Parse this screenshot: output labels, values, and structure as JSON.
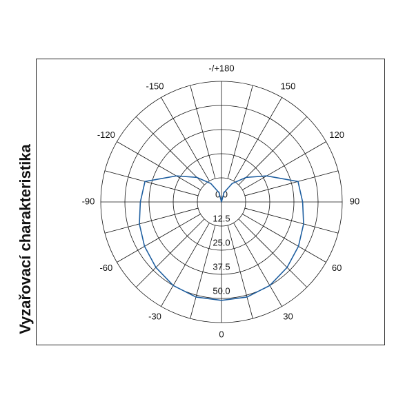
{
  "chart_data": {
    "type": "polar",
    "title": "Vyzařovací charakteristika",
    "x": [
      -180,
      -165,
      -150,
      -135,
      -120,
      -105,
      -90,
      -75,
      -60,
      -45,
      -30,
      -15,
      0,
      15,
      30,
      45,
      60,
      75,
      90,
      105,
      120,
      135,
      150,
      165,
      180
    ],
    "values": [
      0,
      5,
      11,
      18,
      27,
      41,
      42,
      44,
      46,
      48,
      50,
      51,
      51,
      51,
      50,
      48,
      46,
      44,
      42,
      41,
      27,
      18,
      11,
      5,
      0
    ],
    "color": "#1f5fa0",
    "xticks": [
      0,
      30,
      60,
      90,
      120,
      150,
      {
        "value": 180,
        "label": "-/+180"
      },
      -150,
      -120,
      -90,
      -60,
      -30
    ],
    "ylim": [
      0,
      62.5
    ],
    "yticks": [
      {
        "value": 0,
        "label": "0.0"
      },
      12.5,
      {
        "value": 25,
        "label": "25.0"
      },
      37.5,
      {
        "value": 50,
        "label": "50.0"
      }
    ],
    "grid": true
  }
}
